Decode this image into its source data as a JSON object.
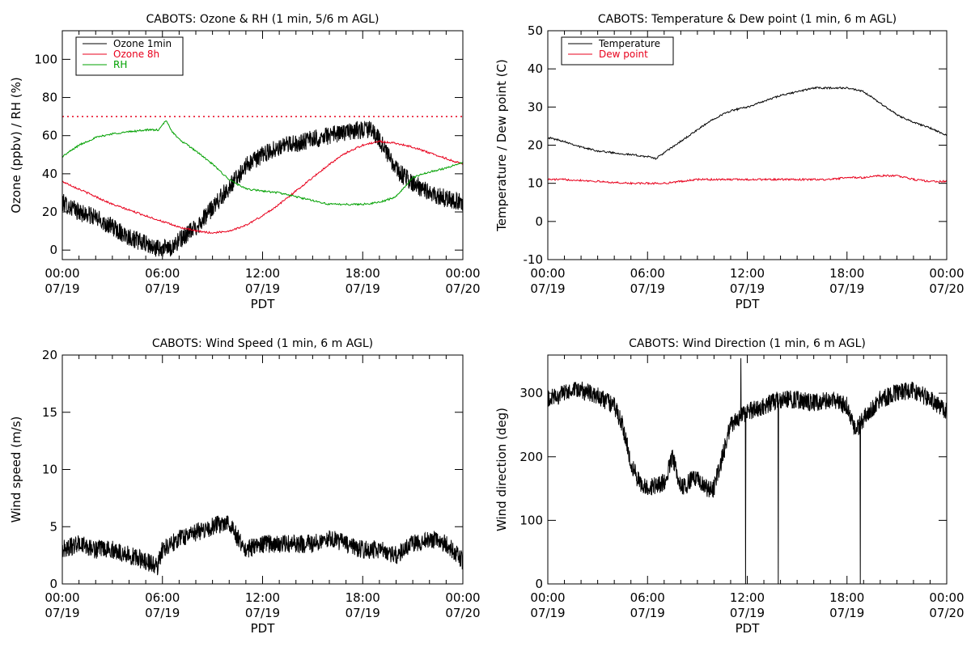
{
  "chart_data": [
    {
      "type": "line",
      "title": "CABOTS: Ozone & RH (1 min, 5/6 m AGL)",
      "xlabel": "PDT",
      "ylabel": "Ozone (ppbv) / RH (%)",
      "xlim": [
        "07/19 00:00",
        "07/20 00:00"
      ],
      "ylim": [
        -5,
        115
      ],
      "yticks": [
        0,
        20,
        40,
        60,
        80,
        100
      ],
      "xticks": [
        {
          "time": "00:00",
          "date": "07/19"
        },
        {
          "time": "06:00",
          "date": "07/19"
        },
        {
          "time": "12:00",
          "date": "07/19"
        },
        {
          "time": "18:00",
          "date": "07/19"
        },
        {
          "time": "00:00",
          "date": "07/20"
        }
      ],
      "legend": "top-left",
      "reference_line": {
        "y": 70,
        "color": "#e8001c",
        "style": "dotted"
      },
      "series": [
        {
          "name": "Ozone 1min",
          "color": "#000000",
          "noisy": true,
          "points": [
            [
              0,
              25
            ],
            [
              1,
              20
            ],
            [
              2,
              17
            ],
            [
              3,
              12
            ],
            [
              4,
              7
            ],
            [
              5,
              3
            ],
            [
              5.5,
              1
            ],
            [
              6,
              1
            ],
            [
              6.5,
              1
            ],
            [
              7,
              5
            ],
            [
              8,
              12
            ],
            [
              9,
              22
            ],
            [
              10,
              33
            ],
            [
              11,
              44
            ],
            [
              12,
              50
            ],
            [
              13,
              54
            ],
            [
              14,
              56
            ],
            [
              15,
              58
            ],
            [
              16,
              60
            ],
            [
              17,
              62
            ],
            [
              18,
              63
            ],
            [
              18.5,
              63
            ],
            [
              19,
              58
            ],
            [
              19.5,
              50
            ],
            [
              20,
              42
            ],
            [
              21,
              35
            ],
            [
              22,
              30
            ],
            [
              23,
              27
            ],
            [
              24,
              25
            ]
          ]
        },
        {
          "name": "Ozone 8h",
          "color": "#e8001c",
          "noisy": false,
          "points": [
            [
              0,
              36
            ],
            [
              1,
              32
            ],
            [
              2,
              28
            ],
            [
              3,
              24
            ],
            [
              4,
              21
            ],
            [
              5,
              18
            ],
            [
              6,
              15
            ],
            [
              7,
              12
            ],
            [
              8,
              10
            ],
            [
              9,
              9
            ],
            [
              10,
              10
            ],
            [
              11,
              13
            ],
            [
              12,
              18
            ],
            [
              13,
              24
            ],
            [
              14,
              31
            ],
            [
              15,
              38
            ],
            [
              16,
              45
            ],
            [
              17,
              51
            ],
            [
              18,
              55
            ],
            [
              19,
              57
            ],
            [
              20,
              56
            ],
            [
              21,
              54
            ],
            [
              22,
              51
            ],
            [
              23,
              48
            ],
            [
              24,
              45
            ]
          ]
        },
        {
          "name": "RH",
          "color": "#00a000",
          "noisy": false,
          "points": [
            [
              0,
              49
            ],
            [
              1,
              55
            ],
            [
              2,
              59
            ],
            [
              3,
              61
            ],
            [
              4,
              62
            ],
            [
              5,
              63
            ],
            [
              5.8,
              63
            ],
            [
              6.2,
              68
            ],
            [
              6.6,
              62
            ],
            [
              7,
              58
            ],
            [
              8,
              52
            ],
            [
              9,
              45
            ],
            [
              10,
              37
            ],
            [
              11,
              32
            ],
            [
              12,
              31
            ],
            [
              13,
              30
            ],
            [
              14,
              28
            ],
            [
              15,
              26
            ],
            [
              16,
              24
            ],
            [
              17,
              24
            ],
            [
              18,
              24
            ],
            [
              19,
              25
            ],
            [
              20,
              28
            ],
            [
              21,
              38
            ],
            [
              22,
              41
            ],
            [
              23,
              43
            ],
            [
              24,
              46
            ]
          ]
        }
      ]
    },
    {
      "type": "line",
      "title": "CABOTS: Temperature & Dew point (1 min, 6 m AGL)",
      "xlabel": "PDT",
      "ylabel": "Temperature / Dew point (C)",
      "xlim": [
        "07/19 00:00",
        "07/20 00:00"
      ],
      "ylim": [
        -10,
        50
      ],
      "yticks": [
        -10,
        0,
        10,
        20,
        30,
        40,
        50
      ],
      "xticks": [
        {
          "time": "00:00",
          "date": "07/19"
        },
        {
          "time": "06:00",
          "date": "07/19"
        },
        {
          "time": "12:00",
          "date": "07/19"
        },
        {
          "time": "18:00",
          "date": "07/19"
        },
        {
          "time": "00:00",
          "date": "07/20"
        }
      ],
      "legend": "top-left",
      "series": [
        {
          "name": "Temperature",
          "color": "#000000",
          "noisy": false,
          "points": [
            [
              0,
              22
            ],
            [
              1,
              21
            ],
            [
              2,
              19.5
            ],
            [
              3,
              18.5
            ],
            [
              4,
              18
            ],
            [
              5,
              17.5
            ],
            [
              6,
              17
            ],
            [
              6.5,
              16.5
            ],
            [
              7,
              18
            ],
            [
              8,
              21
            ],
            [
              9,
              24
            ],
            [
              10,
              27
            ],
            [
              11,
              29
            ],
            [
              12,
              30
            ],
            [
              13,
              31.5
            ],
            [
              14,
              33
            ],
            [
              15,
              34
            ],
            [
              16,
              35
            ],
            [
              17,
              35
            ],
            [
              18,
              35
            ],
            [
              19,
              34
            ],
            [
              20,
              31
            ],
            [
              21,
              28
            ],
            [
              22,
              26
            ],
            [
              23,
              24.5
            ],
            [
              24,
              22.5
            ]
          ]
        },
        {
          "name": "Dew point",
          "color": "#e8001c",
          "noisy": false,
          "points": [
            [
              0,
              11
            ],
            [
              1,
              11
            ],
            [
              2,
              10.8
            ],
            [
              3,
              10.5
            ],
            [
              4,
              10.2
            ],
            [
              5,
              10
            ],
            [
              6,
              10
            ],
            [
              7,
              10
            ],
            [
              8,
              10.5
            ],
            [
              9,
              11
            ],
            [
              10,
              11
            ],
            [
              11,
              11
            ],
            [
              12,
              11
            ],
            [
              13,
              11
            ],
            [
              14,
              11
            ],
            [
              15,
              11
            ],
            [
              16,
              11
            ],
            [
              17,
              11
            ],
            [
              18,
              11.5
            ],
            [
              19,
              11.5
            ],
            [
              20,
              12
            ],
            [
              21,
              12
            ],
            [
              22,
              11
            ],
            [
              23,
              10.5
            ],
            [
              24,
              10.5
            ]
          ]
        }
      ]
    },
    {
      "type": "line",
      "title": "CABOTS: Wind Speed (1 min, 6 m AGL)",
      "xlabel": "PDT",
      "ylabel": "Wind speed (m/s)",
      "xlim": [
        "07/19 00:00",
        "07/20 00:00"
      ],
      "ylim": [
        0,
        20
      ],
      "yticks": [
        0,
        5,
        10,
        15,
        20
      ],
      "xticks": [
        {
          "time": "00:00",
          "date": "07/19"
        },
        {
          "time": "06:00",
          "date": "07/19"
        },
        {
          "time": "12:00",
          "date": "07/19"
        },
        {
          "time": "18:00",
          "date": "07/19"
        },
        {
          "time": "00:00",
          "date": "07/20"
        }
      ],
      "series": [
        {
          "color": "#000000",
          "noisy": true,
          "points": [
            [
              0,
              3
            ],
            [
              1,
              3.5
            ],
            [
              2,
              3
            ],
            [
              3,
              3
            ],
            [
              4,
              2.5
            ],
            [
              5,
              2
            ],
            [
              5.7,
              1.5
            ],
            [
              6,
              3
            ],
            [
              7,
              4
            ],
            [
              8,
              4.5
            ],
            [
              9,
              5
            ],
            [
              10,
              5.5
            ],
            [
              10.5,
              4
            ],
            [
              11,
              3
            ],
            [
              12,
              3.5
            ],
            [
              13,
              3.5
            ],
            [
              14,
              3.5
            ],
            [
              15,
              3.5
            ],
            [
              16,
              4
            ],
            [
              17,
              3.5
            ],
            [
              18,
              3
            ],
            [
              19,
              3
            ],
            [
              20,
              2.5
            ],
            [
              21,
              3.5
            ],
            [
              22,
              4
            ],
            [
              23,
              3.5
            ],
            [
              24,
              2
            ]
          ]
        }
      ]
    },
    {
      "type": "line",
      "title": "CABOTS: Wind Direction (1 min, 6 m AGL)",
      "xlabel": "PDT",
      "ylabel": "Wind direction (deg)",
      "xlim": [
        "07/19 00:00",
        "07/20 00:00"
      ],
      "ylim": [
        0,
        360
      ],
      "yticks": [
        0,
        100,
        200,
        300
      ],
      "xticks": [
        {
          "time": "00:00",
          "date": "07/19"
        },
        {
          "time": "06:00",
          "date": "07/19"
        },
        {
          "time": "12:00",
          "date": "07/19"
        },
        {
          "time": "18:00",
          "date": "07/19"
        },
        {
          "time": "00:00",
          "date": "07/20"
        }
      ],
      "series": [
        {
          "color": "#000000",
          "noisy": true,
          "points": [
            [
              0,
              290
            ],
            [
              1,
              300
            ],
            [
              2,
              305
            ],
            [
              3,
              295
            ],
            [
              4,
              280
            ],
            [
              4.5,
              250
            ],
            [
              5,
              190
            ],
            [
              5.5,
              160
            ],
            [
              6,
              150
            ],
            [
              7,
              160
            ],
            [
              7.5,
              200
            ],
            [
              8,
              150
            ],
            [
              9,
              170
            ],
            [
              9.5,
              150
            ],
            [
              10,
              150
            ],
            [
              10.5,
              200
            ],
            [
              11,
              250
            ],
            [
              12,
              270
            ],
            [
              13,
              280
            ],
            [
              14,
              290
            ],
            [
              15,
              290
            ],
            [
              16,
              285
            ],
            [
              17,
              290
            ],
            [
              18,
              280
            ],
            [
              18.5,
              240
            ],
            [
              19,
              260
            ],
            [
              20,
              290
            ],
            [
              21,
              300
            ],
            [
              22,
              305
            ],
            [
              23,
              290
            ],
            [
              24,
              270
            ]
          ]
        }
      ]
    }
  ]
}
